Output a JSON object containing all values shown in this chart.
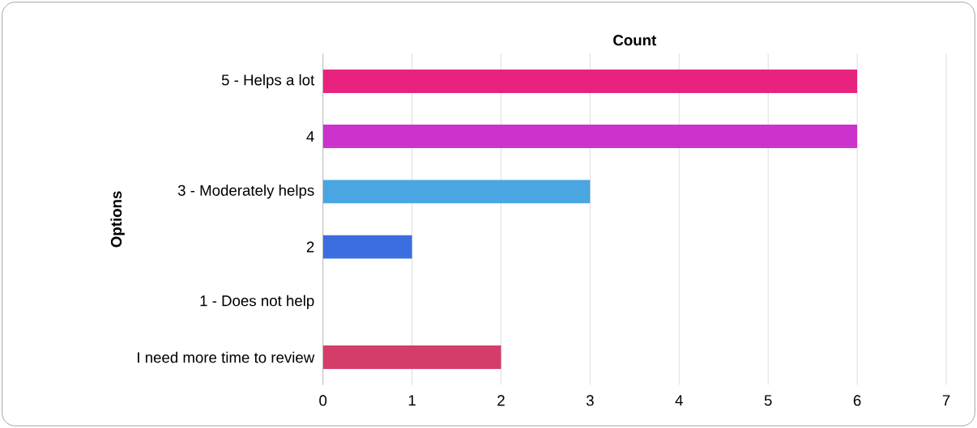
{
  "chart_data": {
    "type": "bar",
    "orientation": "horizontal",
    "title": "Count",
    "ylabel": "Options",
    "categories": [
      "5 - Helps a lot",
      "4",
      "3 - Moderately helps",
      "2",
      "1 - Does not help",
      "I need more time to review"
    ],
    "values": [
      6,
      6,
      3,
      1,
      0,
      2
    ],
    "colors": [
      "#e8237f",
      "#cc33cc",
      "#4aa6e0",
      "#3b6ee0",
      "#3da84a",
      "#d43d6a"
    ],
    "xlim": [
      0,
      7
    ],
    "xticks": [
      0,
      1,
      2,
      3,
      4,
      5,
      6,
      7
    ],
    "grid": "x"
  }
}
